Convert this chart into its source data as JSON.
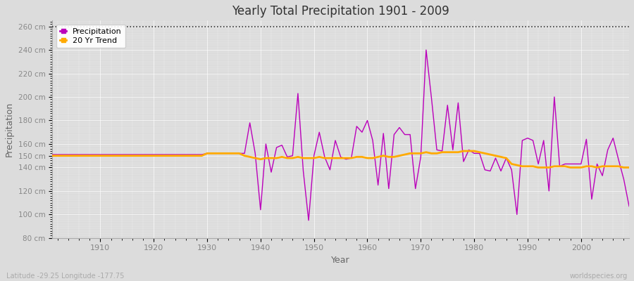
{
  "title": "Yearly Total Precipitation 1901 - 2009",
  "xlabel": "Year",
  "ylabel": "Precipitation",
  "lat_lon_label": "Latitude -29.25 Longitude -177.75",
  "source_label": "worldspecies.org",
  "ylim": [
    80,
    265
  ],
  "background_color": "#dcdcdc",
  "precip_color": "#bb00bb",
  "trend_color": "#ffaa00",
  "precip_linewidth": 1.0,
  "trend_linewidth": 2.0,
  "years": [
    1901,
    1902,
    1903,
    1904,
    1905,
    1906,
    1907,
    1908,
    1909,
    1910,
    1911,
    1912,
    1913,
    1914,
    1915,
    1916,
    1917,
    1918,
    1919,
    1920,
    1921,
    1922,
    1923,
    1924,
    1925,
    1926,
    1927,
    1928,
    1929,
    1930,
    1931,
    1932,
    1933,
    1934,
    1935,
    1936,
    1937,
    1938,
    1939,
    1940,
    1941,
    1942,
    1943,
    1944,
    1945,
    1946,
    1947,
    1948,
    1949,
    1950,
    1951,
    1952,
    1953,
    1954,
    1955,
    1956,
    1957,
    1958,
    1959,
    1960,
    1961,
    1962,
    1963,
    1964,
    1965,
    1966,
    1967,
    1968,
    1969,
    1970,
    1971,
    1972,
    1973,
    1974,
    1975,
    1976,
    1977,
    1978,
    1979,
    1980,
    1981,
    1982,
    1983,
    1984,
    1985,
    1986,
    1987,
    1988,
    1989,
    1990,
    1991,
    1992,
    1993,
    1994,
    1995,
    1996,
    1997,
    1998,
    1999,
    2000,
    2001,
    2002,
    2003,
    2004,
    2005,
    2006,
    2007,
    2008,
    2009
  ],
  "precip": [
    151,
    151,
    151,
    151,
    151,
    151,
    151,
    151,
    151,
    151,
    151,
    151,
    151,
    151,
    151,
    151,
    151,
    151,
    151,
    151,
    151,
    151,
    151,
    151,
    151,
    151,
    151,
    151,
    151,
    152,
    152,
    152,
    152,
    152,
    152,
    152,
    152,
    178,
    152,
    104,
    160,
    136,
    157,
    159,
    149,
    150,
    203,
    137,
    95,
    150,
    170,
    149,
    138,
    163,
    149,
    147,
    148,
    175,
    170,
    180,
    163,
    125,
    169,
    122,
    168,
    174,
    168,
    168,
    122,
    149,
    240,
    199,
    155,
    154,
    193,
    155,
    195,
    145,
    155,
    152,
    152,
    138,
    137,
    148,
    137,
    148,
    138,
    100,
    163,
    165,
    163,
    143,
    163,
    120,
    200,
    141,
    143,
    143,
    143,
    143,
    164,
    113,
    143,
    133,
    155,
    165,
    147,
    130,
    107
  ],
  "trend": [
    150,
    150,
    150,
    150,
    150,
    150,
    150,
    150,
    150,
    150,
    150,
    150,
    150,
    150,
    150,
    150,
    150,
    150,
    150,
    150,
    150,
    150,
    150,
    150,
    150,
    150,
    150,
    150,
    150,
    152,
    152,
    152,
    152,
    152,
    152,
    152,
    150,
    149,
    148,
    147,
    148,
    148,
    148,
    149,
    148,
    148,
    149,
    148,
    148,
    148,
    149,
    148,
    148,
    148,
    148,
    148,
    148,
    149,
    149,
    148,
    148,
    149,
    150,
    149,
    149,
    150,
    151,
    152,
    152,
    152,
    153,
    152,
    152,
    153,
    153,
    153,
    153,
    154,
    154,
    154,
    153,
    152,
    151,
    150,
    149,
    148,
    143,
    142,
    141,
    141,
    141,
    140,
    140,
    140,
    141,
    141,
    141,
    140,
    140,
    140,
    141,
    141,
    140,
    141,
    141,
    141,
    141,
    140,
    140
  ]
}
